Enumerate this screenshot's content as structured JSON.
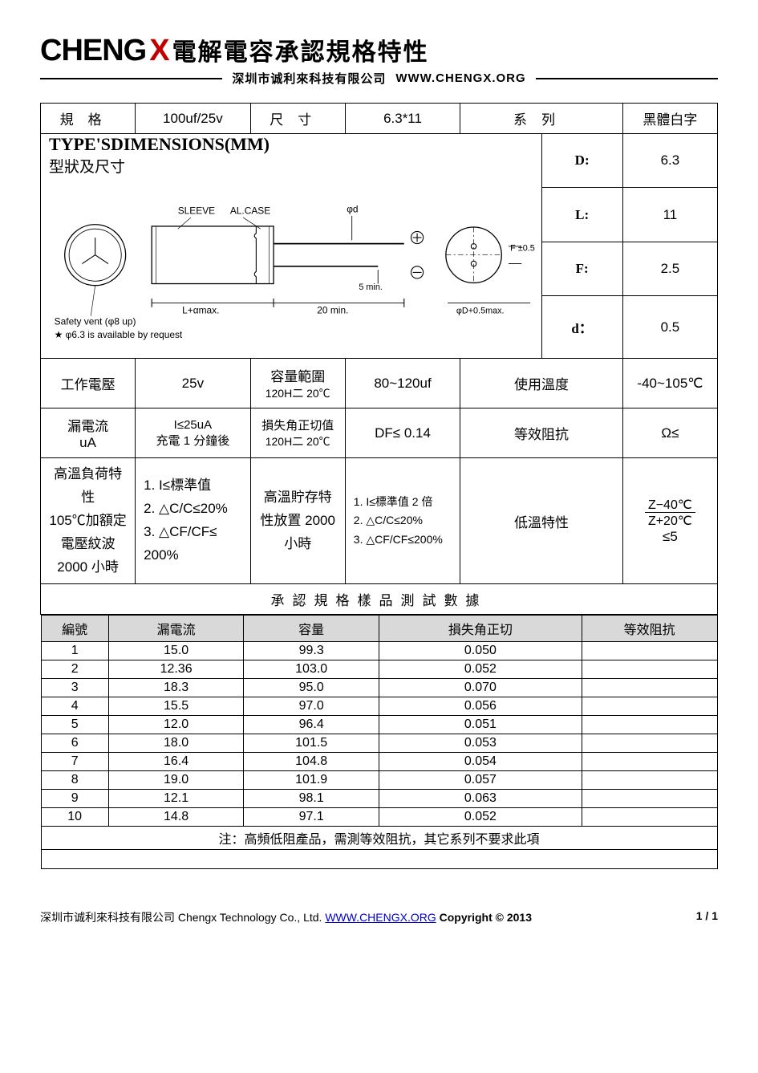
{
  "header": {
    "logo_main": "CHENG",
    "logo_x": "X",
    "title": "電解電容承認規格特性",
    "company": "深圳市诚利來科技有限公司",
    "url": "WWW.CHENGX.ORG"
  },
  "spec_row": {
    "spec_label": "規格",
    "spec_value": "100uf/25v",
    "size_label": "尺寸",
    "size_value": "6.3*11",
    "series_label": "系列",
    "series_value": "黑體白字"
  },
  "dimensions": {
    "title": "TYPE'SDIMENSIONS(MM)",
    "subtitle": "型狀及尺寸",
    "labels": {
      "sleeve": "SLEEVE",
      "alcase": "AL.CASE",
      "d_small": "φd",
      "f_tol": "F ±0.5",
      "d_tol": "φD+0.5max.",
      "l_dim": "L+αmax.",
      "twenty": "20 min.",
      "five": "5 min.",
      "safety": "Safety vent (φ8 up)",
      "note": "★ φ6.3 is available by request"
    },
    "params": [
      {
        "label": "D:",
        "value": "6.3"
      },
      {
        "label": "L:",
        "value": "11"
      },
      {
        "label": "F:",
        "value": "2.5"
      },
      {
        "label": "d：",
        "value": "0.5"
      }
    ]
  },
  "electrical": {
    "row1": {
      "c1": "工作電壓",
      "c2": "25v",
      "c3a": "容量範圍",
      "c3b": "120H㆓ 20℃",
      "c4": "80~120uf",
      "c5": "使用溫度",
      "c6": "-40~105℃"
    },
    "row2": {
      "c1a": "漏電流",
      "c1b": "uA",
      "c2a": "I≤25uA",
      "c2b": "充電 1 分鐘後",
      "c3a": "損失角正切值",
      "c3b": "120H㆓ 20℃",
      "c4": "DF≤ 0.14",
      "c5": "等效阻抗",
      "c6": "Ω≤"
    },
    "row3": {
      "c1": "高溫負荷特性\n105℃加額定\n電壓紋波\n2000 小時",
      "c2": "1. I≤標準值\n2. △C/C≤20%\n3. △CF/CF≤\n200%",
      "c3": "高溫貯存特\n性放置 2000\n小時",
      "c4": "1. I≤標準值 2 倍\n2. △C/C≤20%\n3. △CF/CF≤200%",
      "c5": "低溫特性",
      "c6_num": "Z−40℃",
      "c6_den": "Z+20℃",
      "c6_suffix": "≤5"
    }
  },
  "test_data": {
    "title": "承認規格樣品測試數據",
    "columns": [
      "編號",
      "漏電流",
      "容量",
      "損失角正切",
      "等效阻抗"
    ],
    "rows": [
      [
        "1",
        "15.0",
        "99.3",
        "0.050",
        ""
      ],
      [
        "2",
        "12.36",
        "103.0",
        "0.052",
        ""
      ],
      [
        "3",
        "18.3",
        "95.0",
        "0.070",
        ""
      ],
      [
        "4",
        "15.5",
        "97.0",
        "0.056",
        ""
      ],
      [
        "5",
        "12.0",
        "96.4",
        "0.051",
        ""
      ],
      [
        "6",
        "18.0",
        "101.5",
        "0.053",
        ""
      ],
      [
        "7",
        "16.4",
        "104.8",
        "0.054",
        ""
      ],
      [
        "8",
        "19.0",
        "101.9",
        "0.057",
        ""
      ],
      [
        "9",
        "12.1",
        "98.1",
        "0.063",
        ""
      ],
      [
        "10",
        "14.8",
        "97.1",
        "0.052",
        ""
      ]
    ],
    "note": "注：高頻低阻產品，需測等效阻抗，其它系列不要求此項"
  },
  "footer": {
    "company": "深圳市诚利來科技有限公司 Chengx Technology Co., Ltd. ",
    "url": "WWW.CHENGX.ORG",
    "copyright": " Copyright © 2013",
    "page": "1 / 1"
  },
  "colors": {
    "accent_red": "#c00000",
    "header_gray": "#d9d9d9",
    "border": "#000000",
    "link": "#0000cc"
  }
}
